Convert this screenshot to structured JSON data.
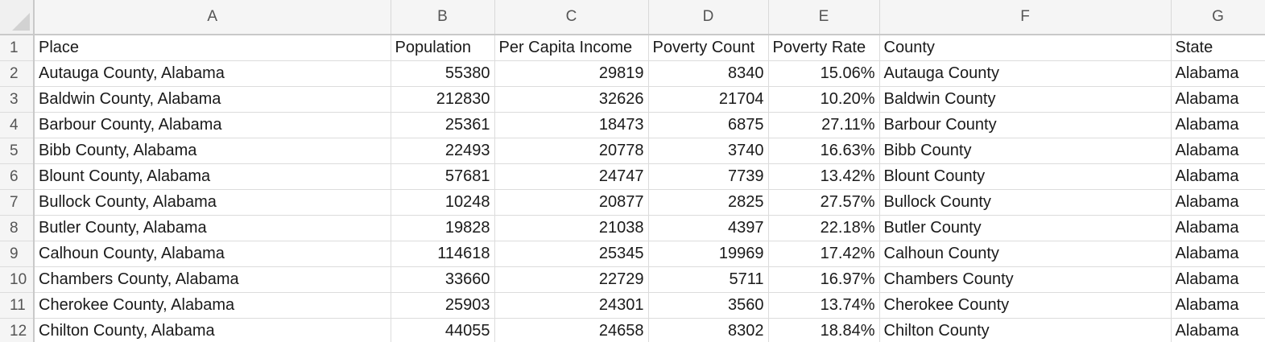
{
  "columns": [
    "A",
    "B",
    "C",
    "D",
    "E",
    "F",
    "G"
  ],
  "rows": [
    {
      "n": "1",
      "cells": [
        "Place",
        "Population",
        "Per Capita Income",
        "Poverty Count",
        "Poverty Rate",
        "County",
        "State"
      ]
    },
    {
      "n": "2",
      "cells": [
        "Autauga County, Alabama",
        "55380",
        "29819",
        "8340",
        "15.06%",
        "Autauga County",
        "Alabama"
      ]
    },
    {
      "n": "3",
      "cells": [
        "Baldwin County, Alabama",
        "212830",
        "32626",
        "21704",
        "10.20%",
        "Baldwin County",
        "Alabama"
      ]
    },
    {
      "n": "4",
      "cells": [
        "Barbour County, Alabama",
        "25361",
        "18473",
        "6875",
        "27.11%",
        "Barbour County",
        "Alabama"
      ]
    },
    {
      "n": "5",
      "cells": [
        "Bibb County, Alabama",
        "22493",
        "20778",
        "3740",
        "16.63%",
        "Bibb County",
        "Alabama"
      ]
    },
    {
      "n": "6",
      "cells": [
        "Blount County, Alabama",
        "57681",
        "24747",
        "7739",
        "13.42%",
        "Blount County",
        "Alabama"
      ]
    },
    {
      "n": "7",
      "cells": [
        "Bullock County, Alabama",
        "10248",
        "20877",
        "2825",
        "27.57%",
        "Bullock County",
        "Alabama"
      ]
    },
    {
      "n": "8",
      "cells": [
        "Butler County, Alabama",
        "19828",
        "21038",
        "4397",
        "22.18%",
        "Butler County",
        "Alabama"
      ]
    },
    {
      "n": "9",
      "cells": [
        "Calhoun County, Alabama",
        "114618",
        "25345",
        "19969",
        "17.42%",
        "Calhoun County",
        "Alabama"
      ]
    },
    {
      "n": "10",
      "cells": [
        "Chambers County, Alabama",
        "33660",
        "22729",
        "5711",
        "16.97%",
        "Chambers County",
        "Alabama"
      ]
    },
    {
      "n": "11",
      "cells": [
        "Cherokee County, Alabama",
        "25903",
        "24301",
        "3560",
        "13.74%",
        "Cherokee County",
        "Alabama"
      ]
    },
    {
      "n": "12",
      "cells": [
        "Chilton County, Alabama",
        "44055",
        "24658",
        "8302",
        "18.84%",
        "Chilton County",
        "Alabama"
      ]
    }
  ]
}
